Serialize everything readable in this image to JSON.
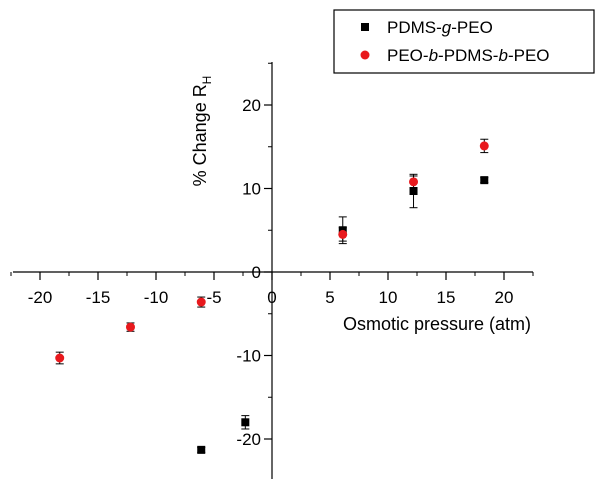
{
  "chart_data": {
    "type": "scatter",
    "xlabel": "Osmotic pressure (atm)",
    "ylabel": {
      "main": "% Change R",
      "sub": "H"
    },
    "xlim": [
      -22.5,
      22.5
    ],
    "ylim": [
      -25,
      25
    ],
    "x_ticks": [
      -20,
      -15,
      -10,
      -5,
      0,
      5,
      10,
      15,
      20
    ],
    "y_ticks": [
      -20,
      -10,
      0,
      10,
      20
    ],
    "tick_labels_x": [
      "-20",
      "-15",
      "-10",
      "-5",
      "0",
      "5",
      "10",
      "15",
      "20"
    ],
    "tick_labels_y": [
      "-20",
      "-10",
      "0",
      "10",
      "20"
    ],
    "legend_position": "top-right",
    "series": [
      {
        "name_parts": [
          {
            "text": "PDMS-",
            "italic": false
          },
          {
            "text": "g",
            "italic": true
          },
          {
            "text": "-PEO",
            "italic": false
          }
        ],
        "marker": "square",
        "color": "#000000",
        "points": [
          {
            "x": -6.1,
            "y": -21.3,
            "err": 0.3
          },
          {
            "x": -2.3,
            "y": -18.0,
            "err": 0.8
          },
          {
            "x": 6.1,
            "y": 5.0,
            "err": 1.6
          },
          {
            "x": 12.2,
            "y": 9.7,
            "err": 2.0
          },
          {
            "x": 18.3,
            "y": 11.0,
            "err": 0.3
          }
        ]
      },
      {
        "name_parts": [
          {
            "text": "PEO-",
            "italic": false
          },
          {
            "text": "b",
            "italic": true
          },
          {
            "text": "-PDMS-",
            "italic": false
          },
          {
            "text": "b",
            "italic": true
          },
          {
            "text": "-PEO",
            "italic": false
          }
        ],
        "marker": "circle",
        "color": "#e8191d",
        "points": [
          {
            "x": -18.3,
            "y": -10.3,
            "err": 0.7
          },
          {
            "x": -12.2,
            "y": -6.6,
            "err": 0.5
          },
          {
            "x": -6.1,
            "y": -3.6,
            "err": 0.6
          },
          {
            "x": 6.1,
            "y": 4.5,
            "err": 0.8
          },
          {
            "x": 12.2,
            "y": 10.8,
            "err": 0.7
          },
          {
            "x": 18.3,
            "y": 15.1,
            "err": 0.8
          }
        ]
      }
    ]
  }
}
